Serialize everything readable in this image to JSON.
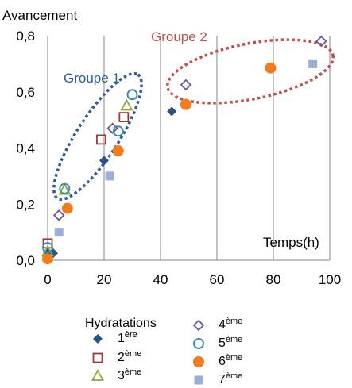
{
  "chart_data": {
    "type": "scatter",
    "ylabel": "Avancement",
    "xlabel": "Temps(h)",
    "xlim": [
      0,
      100
    ],
    "ylim": [
      0,
      0.8
    ],
    "x_ticks": [
      "0",
      "20",
      "40",
      "60",
      "80",
      "100"
    ],
    "y_ticks": [
      "0,0",
      "0,2",
      "0,4",
      "0,6",
      "0,8"
    ],
    "grid": "vertical",
    "colors": {
      "s1": "#2d5287",
      "s2": "#a33a33",
      "s3": "#8fa83a",
      "s4": "#6e5494",
      "s5": "#3d8db3",
      "s6": "#f07c1c",
      "s7": "#9aaed6",
      "group1": "#2e5b9a",
      "group2": "#c0504d"
    },
    "annotations": {
      "group1": "Groupe 1",
      "group2": "Groupe 2"
    },
    "legend": {
      "title": "Hydratations",
      "placement": "bottom",
      "entries": [
        {
          "num": "1",
          "sup": "ère"
        },
        {
          "num": "2",
          "sup": "ème"
        },
        {
          "num": "3",
          "sup": "ème"
        },
        {
          "num": "4",
          "sup": "ème"
        },
        {
          "num": "5",
          "sup": "ème"
        },
        {
          "num": "6",
          "sup": "ème"
        },
        {
          "num": "7",
          "sup": "ème"
        }
      ]
    },
    "series": [
      {
        "marker": "diamond-filled",
        "color": "s1",
        "points": [
          [
            0,
            0.03
          ],
          [
            2,
            0.025
          ],
          [
            20,
            0.355
          ],
          [
            44,
            0.53
          ]
        ]
      },
      {
        "marker": "square-open",
        "color": "s2",
        "points": [
          [
            0,
            0.06
          ],
          [
            19,
            0.43
          ],
          [
            27,
            0.51
          ]
        ]
      },
      {
        "marker": "triangle-open",
        "color": "s3",
        "points": [
          [
            0,
            0.03
          ],
          [
            6,
            0.25
          ],
          [
            28,
            0.55
          ]
        ]
      },
      {
        "marker": "diamond-open",
        "color": "s4",
        "points": [
          [
            4,
            0.16
          ],
          [
            23,
            0.47
          ],
          [
            49,
            0.625
          ],
          [
            97,
            0.78
          ]
        ]
      },
      {
        "marker": "circle-open",
        "color": "s5",
        "points": [
          [
            0,
            0.045
          ],
          [
            6,
            0.255
          ],
          [
            25,
            0.46
          ],
          [
            30,
            0.59
          ]
        ]
      },
      {
        "marker": "circle-filled",
        "color": "s6",
        "points": [
          [
            0,
            0.005
          ],
          [
            7,
            0.185
          ],
          [
            25,
            0.39
          ],
          [
            49,
            0.555
          ],
          [
            79,
            0.685
          ]
        ]
      },
      {
        "marker": "square-filled",
        "color": "s7",
        "points": [
          [
            4,
            0.1
          ],
          [
            22,
            0.3
          ],
          [
            94,
            0.7
          ]
        ]
      }
    ]
  }
}
